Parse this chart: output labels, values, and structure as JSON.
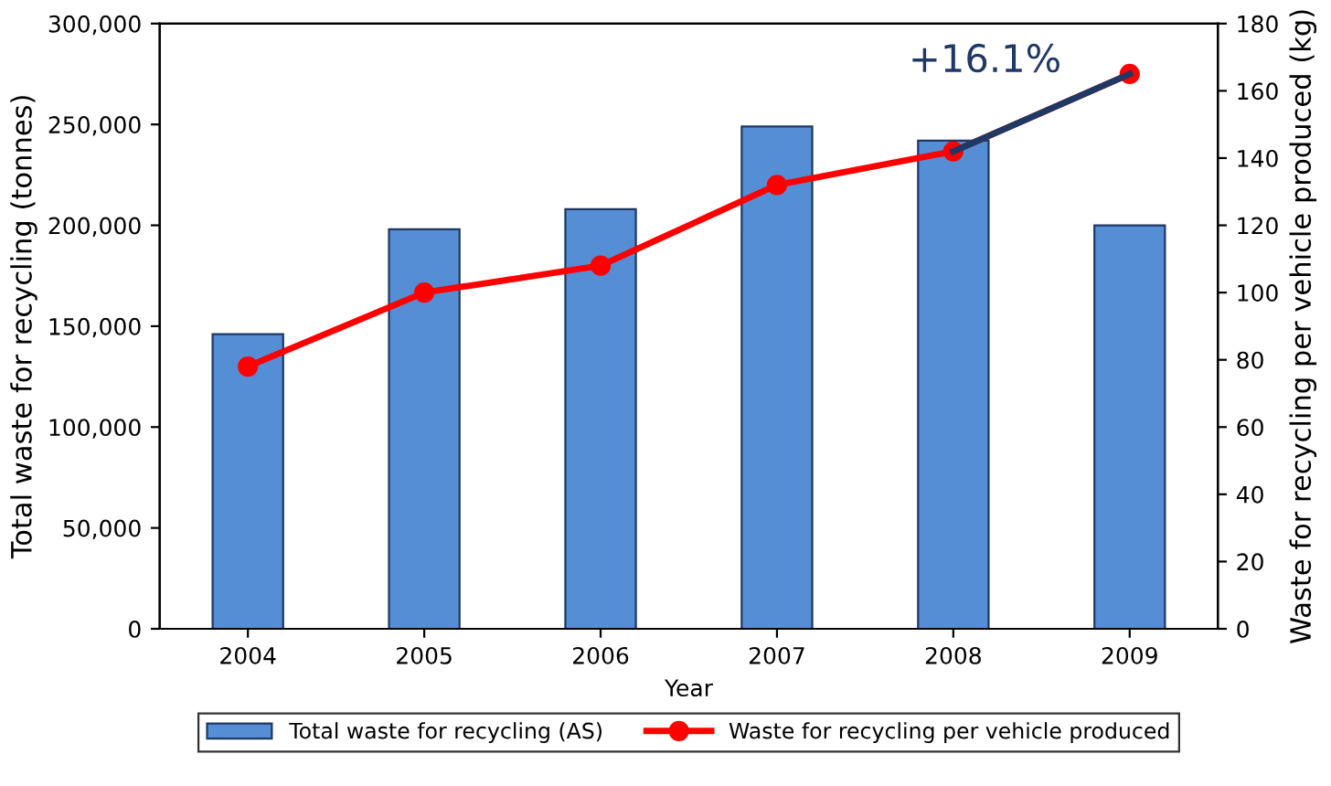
{
  "chart_data": {
    "type": "bar",
    "xlabel": "Year",
    "ylabel": "Total waste for recycling (tonnes)",
    "y2label": "Waste for recycling per vehicle produced (kg)",
    "categories": [
      "2004",
      "2005",
      "2006",
      "2007",
      "2008",
      "2009"
    ],
    "series": [
      {
        "name": "Total waste for recycling (AS)",
        "color": "#558ed5",
        "values": [
          146000,
          198000,
          208000,
          249000,
          242000,
          200000
        ]
      },
      {
        "name": "Waste for recycling per vehicle produced",
        "type": "line",
        "axis": "y2",
        "color": "#ff0000",
        "marker": "circle",
        "values": [
          78,
          100,
          108,
          132,
          142,
          165
        ]
      },
      {
        "type": "line",
        "axis": "y2",
        "color": "#1f3864",
        "marker": "none",
        "values": [
          null,
          null,
          null,
          null,
          142,
          165
        ]
      }
    ],
    "ylim": [
      0,
      300000
    ],
    "yticks": [
      {
        "value": 0,
        "label": "0"
      },
      {
        "value": 50000,
        "label": "50,000"
      },
      {
        "value": 100000,
        "label": "100,000"
      },
      {
        "value": 150000,
        "label": "150,000"
      },
      {
        "value": 200000,
        "label": "200,000"
      },
      {
        "value": 250000,
        "label": "250,000"
      },
      {
        "value": 300000,
        "label": "300,000"
      }
    ],
    "y2lim": [
      0,
      180
    ],
    "y2ticks": [
      0,
      20,
      40,
      60,
      80,
      100,
      120,
      140,
      160,
      180
    ],
    "annotations": [
      "+16.1%"
    ],
    "grid": false,
    "legend": "bottom"
  }
}
